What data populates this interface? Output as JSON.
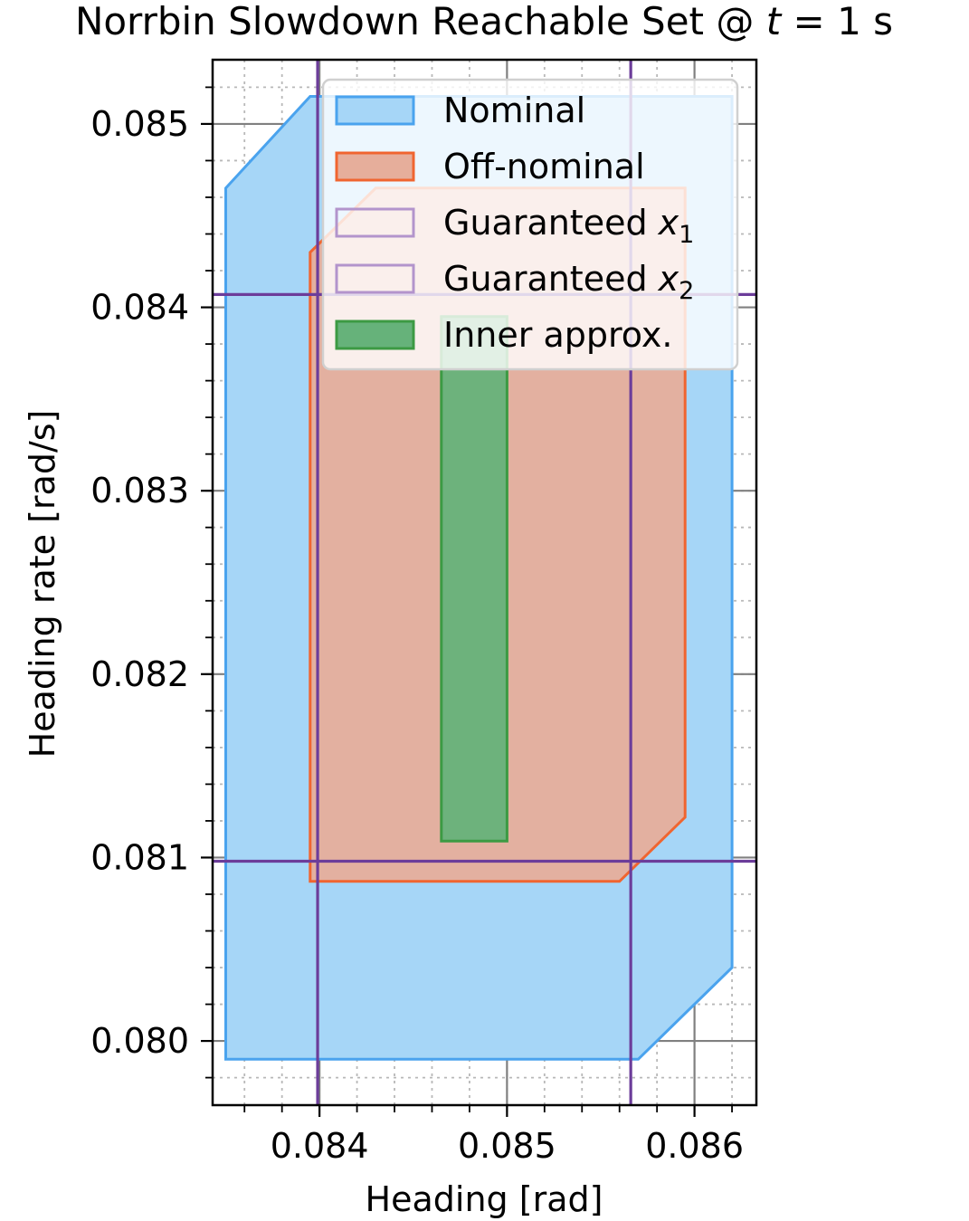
{
  "chart_data": {
    "type": "area",
    "title": "Norrbin Slowdown Reachable Set @ ",
    "title_math_var": "t",
    "title_math_rest": " = 1 s",
    "xlabel": "Heading [rad]",
    "ylabel": "Heading rate [rad/s]",
    "xlim": [
      0.08343,
      0.08633
    ],
    "ylim": [
      0.07965,
      0.08535
    ],
    "xticks": [
      0.084,
      0.085,
      0.086
    ],
    "xtick_labels": [
      "0.084",
      "0.085",
      "0.086"
    ],
    "yticks": [
      0.08,
      0.081,
      0.082,
      0.083,
      0.084,
      0.085
    ],
    "ytick_labels": [
      "0.080",
      "0.081",
      "0.082",
      "0.083",
      "0.084",
      "0.085"
    ],
    "grid": true,
    "minor_grid": true,
    "legend_placement": "top-right",
    "series": [
      {
        "name": "Nominal",
        "kind": "polygon",
        "fill": "#a6d6f7",
        "stroke": "#4aa3ee",
        "points": [
          [
            0.0835,
            0.0799
          ],
          [
            0.0857,
            0.0799
          ],
          [
            0.0862,
            0.0804
          ],
          [
            0.0862,
            0.08515
          ],
          [
            0.08395,
            0.08515
          ],
          [
            0.0835,
            0.08465
          ]
        ]
      },
      {
        "name": "Off-nominal",
        "kind": "polygon",
        "fill": "#e6ae9b",
        "stroke": "#f06530",
        "points": [
          [
            0.08395,
            0.08087
          ],
          [
            0.0856,
            0.08087
          ],
          [
            0.08595,
            0.08122
          ],
          [
            0.08595,
            0.08465
          ],
          [
            0.0843,
            0.08465
          ],
          [
            0.08395,
            0.0843
          ]
        ]
      },
      {
        "name": "Guaranteed x",
        "name_subscript": "1",
        "kind": "vlines",
        "stroke": "#6c3d9a",
        "legend_edge": "#b394cc",
        "x": [
          0.08399,
          0.08566
        ]
      },
      {
        "name": "Guaranteed x",
        "name_subscript": "2",
        "kind": "hlines",
        "stroke": "#6c3d9a",
        "legend_edge": "#b394cc",
        "y": [
          0.08098,
          0.08407
        ]
      },
      {
        "name": "Inner approx.",
        "kind": "polygon",
        "fill": "#66b27a",
        "stroke": "#3c9a43",
        "points": [
          [
            0.08465,
            0.08109
          ],
          [
            0.085,
            0.08109
          ],
          [
            0.085,
            0.08395
          ],
          [
            0.08465,
            0.08395
          ]
        ]
      }
    ]
  }
}
